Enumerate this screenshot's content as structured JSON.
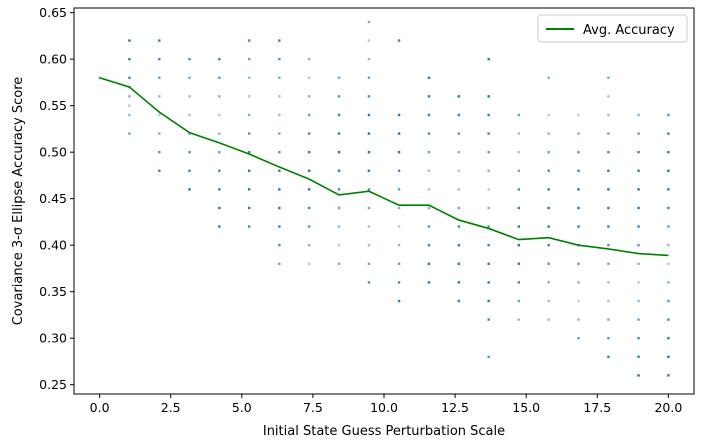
{
  "chart_data": {
    "type": "scatter",
    "xlabel": "Initial State Guess Perturbation Scale",
    "ylabel": "Covariance 3-σ Ellipse Accuracy Score",
    "xlim": [
      -0.9,
      20.9
    ],
    "ylim": [
      0.24,
      0.655
    ],
    "xticks": [
      "0.0",
      "2.5",
      "5.0",
      "7.5",
      "10.0",
      "12.5",
      "15.0",
      "17.5",
      "20.0"
    ],
    "yticks": [
      "0.25",
      "0.30",
      "0.35",
      "0.40",
      "0.45",
      "0.50",
      "0.55",
      "0.60",
      "0.65"
    ],
    "grid": false,
    "legend_position": "top-right",
    "colors": {
      "scatter": "#1f77b4",
      "line": "#008000"
    },
    "series": [
      {
        "name": "Avg. Accuracy",
        "kind": "line",
        "x": [
          0.0,
          1.05,
          2.1,
          3.16,
          4.21,
          5.26,
          6.32,
          7.37,
          8.42,
          9.47,
          10.53,
          11.58,
          12.63,
          13.68,
          14.74,
          15.79,
          16.84,
          17.89,
          18.95,
          20.0
        ],
        "y": [
          0.58,
          0.57,
          0.543,
          0.521,
          0.51,
          0.498,
          0.484,
          0.471,
          0.454,
          0.458,
          0.443,
          0.443,
          0.427,
          0.418,
          0.406,
          0.408,
          0.4,
          0.396,
          0.391,
          0.389
        ]
      },
      {
        "kind": "scatter",
        "columns": [
          {
            "x": 0.0,
            "y": [
              0.58
            ]
          },
          {
            "x": 1.05,
            "y": [
              0.52,
              0.54,
              0.55,
              0.56,
              0.57,
              0.58,
              0.6,
              0.62
            ]
          },
          {
            "x": 2.1,
            "y": [
              0.48,
              0.5,
              0.52,
              0.54,
              0.56,
              0.58,
              0.6,
              0.62
            ]
          },
          {
            "x": 3.16,
            "y": [
              0.46,
              0.48,
              0.5,
              0.52,
              0.54,
              0.56,
              0.58,
              0.6
            ]
          },
          {
            "x": 4.21,
            "y": [
              0.42,
              0.44,
              0.46,
              0.48,
              0.5,
              0.52,
              0.54,
              0.56,
              0.58,
              0.6
            ]
          },
          {
            "x": 5.26,
            "y": [
              0.42,
              0.44,
              0.46,
              0.48,
              0.5,
              0.52,
              0.54,
              0.56,
              0.58,
              0.6,
              0.62
            ]
          },
          {
            "x": 6.32,
            "y": [
              0.38,
              0.4,
              0.42,
              0.44,
              0.46,
              0.48,
              0.5,
              0.52,
              0.54,
              0.56,
              0.58,
              0.6,
              0.62
            ]
          },
          {
            "x": 7.37,
            "y": [
              0.38,
              0.4,
              0.42,
              0.44,
              0.46,
              0.48,
              0.5,
              0.52,
              0.54,
              0.56,
              0.58,
              0.6
            ]
          },
          {
            "x": 8.42,
            "y": [
              0.38,
              0.4,
              0.42,
              0.44,
              0.46,
              0.48,
              0.5,
              0.52,
              0.54,
              0.56,
              0.58
            ]
          },
          {
            "x": 9.47,
            "y": [
              0.36,
              0.38,
              0.4,
              0.42,
              0.44,
              0.46,
              0.48,
              0.5,
              0.52,
              0.54,
              0.56,
              0.58,
              0.6,
              0.62,
              0.64
            ]
          },
          {
            "x": 10.53,
            "y": [
              0.34,
              0.36,
              0.38,
              0.4,
              0.42,
              0.44,
              0.46,
              0.48,
              0.5,
              0.52,
              0.54,
              0.62
            ]
          },
          {
            "x": 11.58,
            "y": [
              0.36,
              0.38,
              0.4,
              0.42,
              0.44,
              0.46,
              0.48,
              0.5,
              0.52,
              0.54,
              0.56,
              0.58
            ]
          },
          {
            "x": 12.63,
            "y": [
              0.34,
              0.36,
              0.38,
              0.4,
              0.42,
              0.44,
              0.46,
              0.48,
              0.5,
              0.52,
              0.54,
              0.56
            ]
          },
          {
            "x": 13.68,
            "y": [
              0.28,
              0.32,
              0.34,
              0.36,
              0.38,
              0.4,
              0.42,
              0.44,
              0.46,
              0.48,
              0.5,
              0.52,
              0.54,
              0.56,
              0.6
            ]
          },
          {
            "x": 14.74,
            "y": [
              0.32,
              0.34,
              0.36,
              0.38,
              0.4,
              0.42,
              0.44,
              0.46,
              0.48,
              0.5,
              0.52,
              0.54
            ]
          },
          {
            "x": 15.79,
            "y": [
              0.32,
              0.34,
              0.36,
              0.38,
              0.4,
              0.42,
              0.44,
              0.46,
              0.48,
              0.5,
              0.52,
              0.54,
              0.58
            ]
          },
          {
            "x": 16.84,
            "y": [
              0.3,
              0.32,
              0.34,
              0.36,
              0.38,
              0.4,
              0.42,
              0.44,
              0.46,
              0.48,
              0.5,
              0.52,
              0.54
            ]
          },
          {
            "x": 17.89,
            "y": [
              0.28,
              0.3,
              0.32,
              0.34,
              0.36,
              0.38,
              0.4,
              0.42,
              0.44,
              0.46,
              0.48,
              0.5,
              0.52,
              0.54,
              0.56,
              0.58
            ]
          },
          {
            "x": 18.95,
            "y": [
              0.26,
              0.28,
              0.3,
              0.32,
              0.34,
              0.36,
              0.38,
              0.4,
              0.42,
              0.44,
              0.46,
              0.48,
              0.5,
              0.52,
              0.54
            ]
          },
          {
            "x": 20.0,
            "y": [
              0.26,
              0.28,
              0.3,
              0.32,
              0.34,
              0.36,
              0.38,
              0.4,
              0.42,
              0.44,
              0.46,
              0.48,
              0.5,
              0.52,
              0.54
            ]
          }
        ]
      }
    ]
  }
}
